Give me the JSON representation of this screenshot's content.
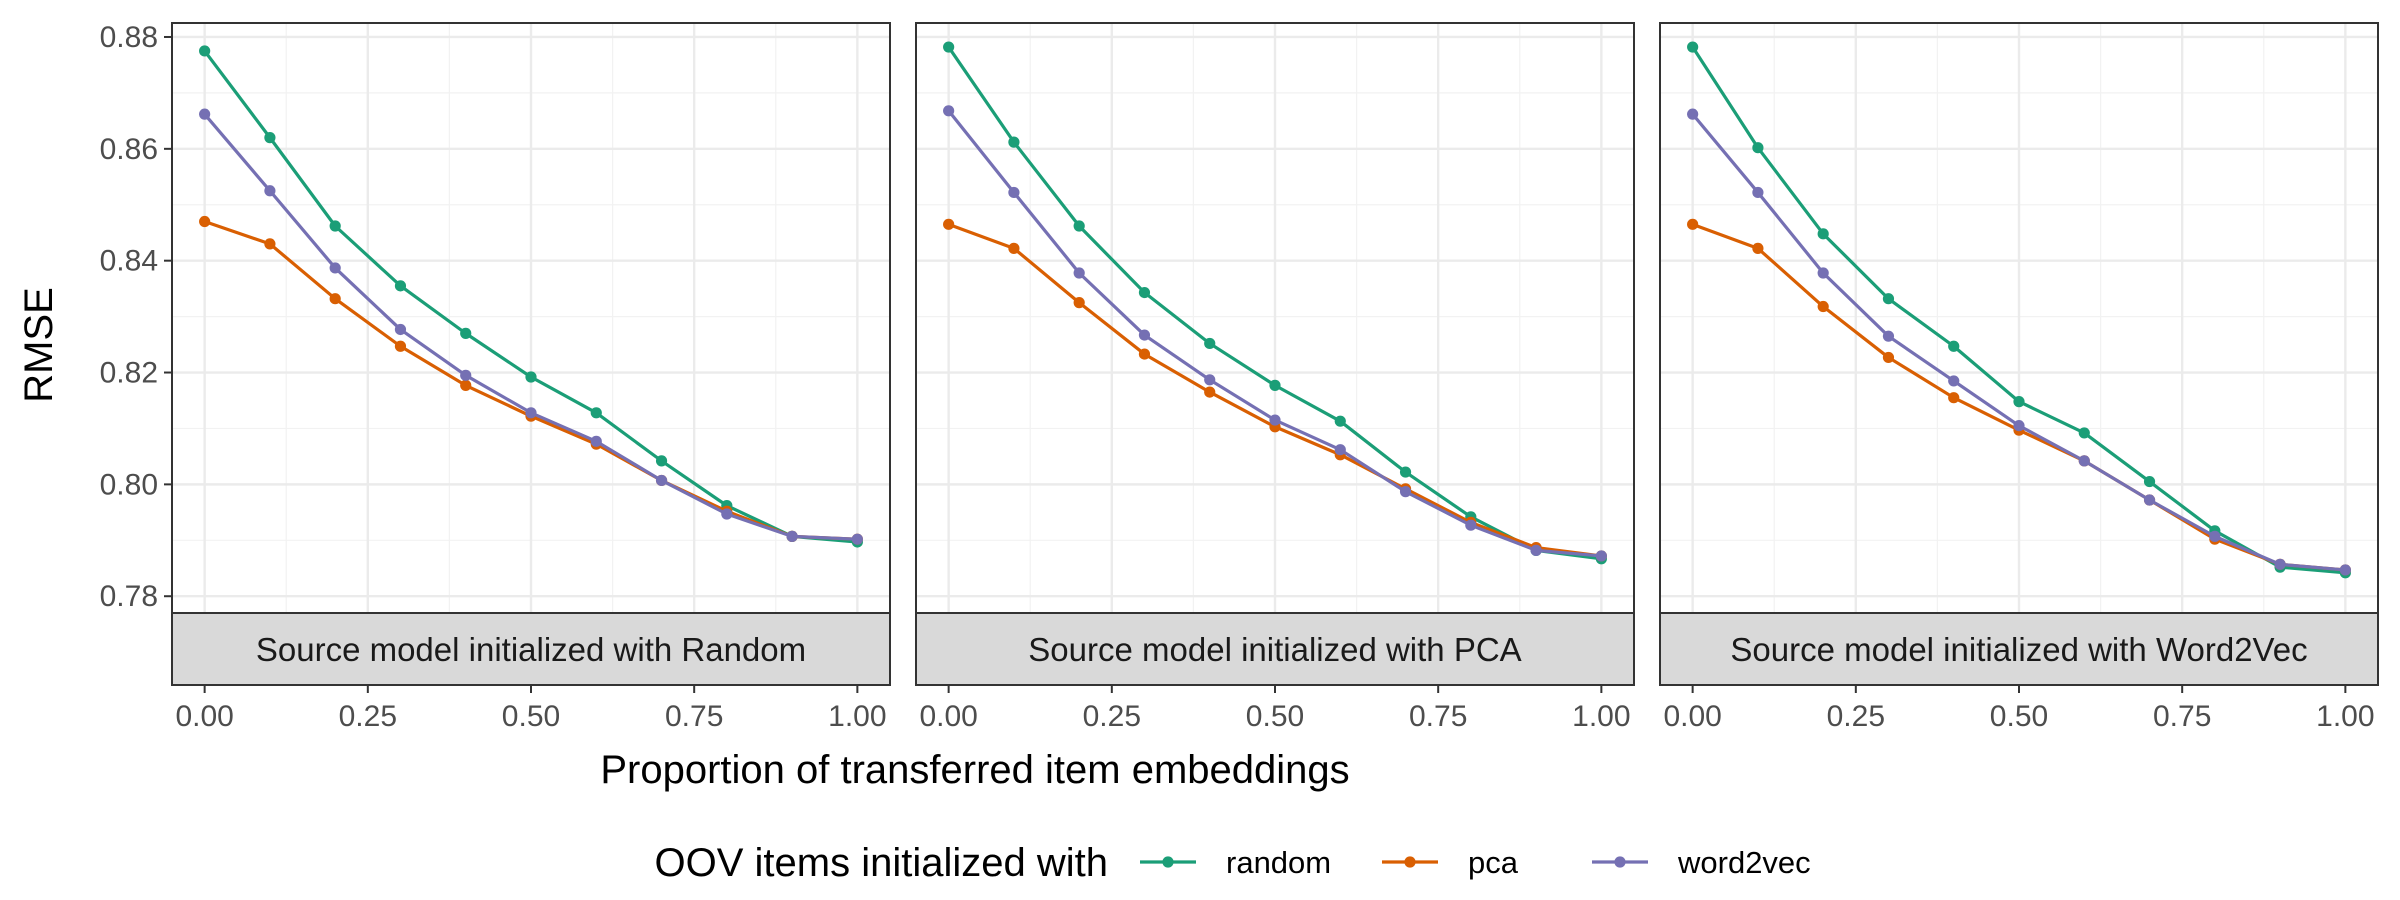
{
  "chart_data": {
    "type": "line",
    "xlabel": "Proportion of transferred item embeddings",
    "ylabel": "RMSE",
    "x": [
      0,
      0.1,
      0.2,
      0.3,
      0.4,
      0.5,
      0.6,
      0.7,
      0.8,
      0.9,
      1.0
    ],
    "xlim": [
      -0.05,
      1.05
    ],
    "ylim": [
      0.777,
      0.8825
    ],
    "x_ticks": [
      0,
      0.25,
      0.5,
      0.75,
      1.0
    ],
    "x_tick_labels": [
      "0.00",
      "0.25",
      "0.50",
      "0.75",
      "1.00"
    ],
    "y_ticks": [
      0.78,
      0.8,
      0.82,
      0.84,
      0.86,
      0.88
    ],
    "y_tick_labels": [
      "0.78",
      "0.80",
      "0.82",
      "0.84",
      "0.86",
      "0.88"
    ],
    "grid": true,
    "legend": {
      "title": "OOV items initialized with",
      "position": "bottom",
      "entries": [
        "random",
        "pca",
        "word2vec"
      ]
    },
    "colors": {
      "random": "#1b9e77",
      "pca": "#d95f02",
      "word2vec": "#7570b3"
    },
    "panels": [
      {
        "strip": "Source model initialized with Random",
        "series": [
          {
            "name": "random",
            "values": [
              0.8775,
              0.862,
              0.8462,
              0.8355,
              0.827,
              0.8192,
              0.8128,
              0.8042,
              0.7962,
              0.7907,
              0.7897
            ]
          },
          {
            "name": "pca",
            "values": [
              0.847,
              0.843,
              0.8332,
              0.8247,
              0.8177,
              0.8122,
              0.8072,
              0.8007,
              0.7952,
              0.7907,
              0.7902
            ]
          },
          {
            "name": "word2vec",
            "values": [
              0.8662,
              0.8525,
              0.8387,
              0.8277,
              0.8195,
              0.8128,
              0.8077,
              0.8007,
              0.7947,
              0.7907,
              0.7902
            ]
          }
        ]
      },
      {
        "strip": "Source model initialized with PCA",
        "series": [
          {
            "name": "random",
            "values": [
              0.8782,
              0.8612,
              0.8462,
              0.8343,
              0.8252,
              0.8177,
              0.8113,
              0.8022,
              0.7942,
              0.7882,
              0.7867
            ]
          },
          {
            "name": "pca",
            "values": [
              0.8465,
              0.8422,
              0.8325,
              0.8233,
              0.8165,
              0.8103,
              0.8053,
              0.7992,
              0.7932,
              0.7887,
              0.7872
            ]
          },
          {
            "name": "word2vec",
            "values": [
              0.8668,
              0.8522,
              0.8378,
              0.8267,
              0.8187,
              0.8115,
              0.8062,
              0.7987,
              0.7927,
              0.7882,
              0.7872
            ]
          }
        ]
      },
      {
        "strip": "Source model initialized with Word2Vec",
        "series": [
          {
            "name": "random",
            "values": [
              0.8782,
              0.8602,
              0.8448,
              0.8332,
              0.8247,
              0.8148,
              0.8092,
              0.8005,
              0.7917,
              0.7852,
              0.7842
            ]
          },
          {
            "name": "pca",
            "values": [
              0.8465,
              0.8422,
              0.8318,
              0.8227,
              0.8155,
              0.8097,
              0.8042,
              0.7972,
              0.7902,
              0.7857,
              0.7847
            ]
          },
          {
            "name": "word2vec",
            "values": [
              0.8662,
              0.8522,
              0.8378,
              0.8265,
              0.8185,
              0.8105,
              0.8042,
              0.7972,
              0.7907,
              0.7857,
              0.7847
            ]
          }
        ]
      }
    ]
  }
}
